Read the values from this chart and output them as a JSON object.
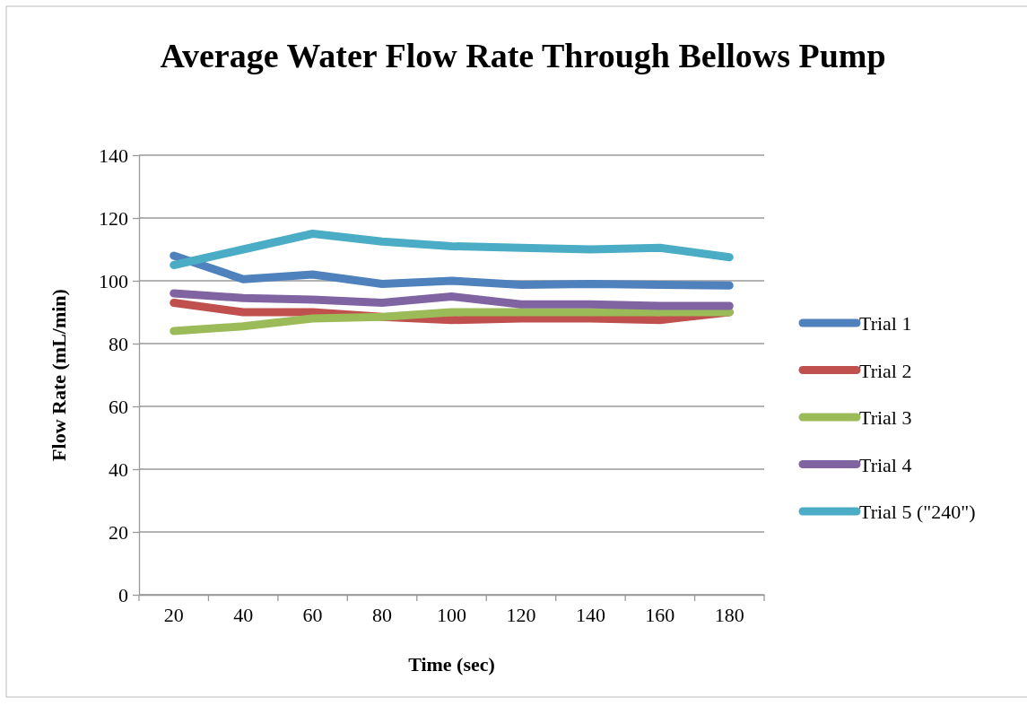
{
  "chart_data": {
    "type": "line",
    "title": "Average Water Flow Rate Through Bellows Pump",
    "xlabel": "Time (sec)",
    "ylabel": "Flow Rate (mL/min)",
    "categories": [
      "20",
      "40",
      "60",
      "80",
      "100",
      "120",
      "140",
      "160",
      "180"
    ],
    "ylim": [
      0,
      140
    ],
    "yticks": [
      0,
      20,
      40,
      60,
      80,
      100,
      120,
      140
    ],
    "grid": "y",
    "legend": "right",
    "marker": "none",
    "line_style": "solid",
    "series": [
      {
        "name": "Trial 1",
        "color": "#4f81bd",
        "values": [
          108,
          100.5,
          102,
          99,
          100,
          98.7,
          99,
          98.7,
          98.5
        ]
      },
      {
        "name": "Trial 2",
        "color": "#c0504d",
        "values": [
          93,
          90,
          90,
          88.5,
          87.5,
          88,
          88,
          87.5,
          90
        ]
      },
      {
        "name": "Trial 3",
        "color": "#9bbb59",
        "values": [
          84,
          85.5,
          88,
          88.5,
          90,
          90,
          90,
          90,
          90
        ]
      },
      {
        "name": "Trial 4",
        "color": "#8064a2",
        "values": [
          96,
          94.5,
          94,
          93,
          95,
          92.5,
          92.5,
          92,
          92
        ]
      },
      {
        "name": "Trial 5 (\"240\")",
        "color": "#4bacc6",
        "values": [
          105,
          110,
          115,
          112.5,
          111,
          110.5,
          110,
          110.5,
          107.5
        ]
      }
    ]
  }
}
